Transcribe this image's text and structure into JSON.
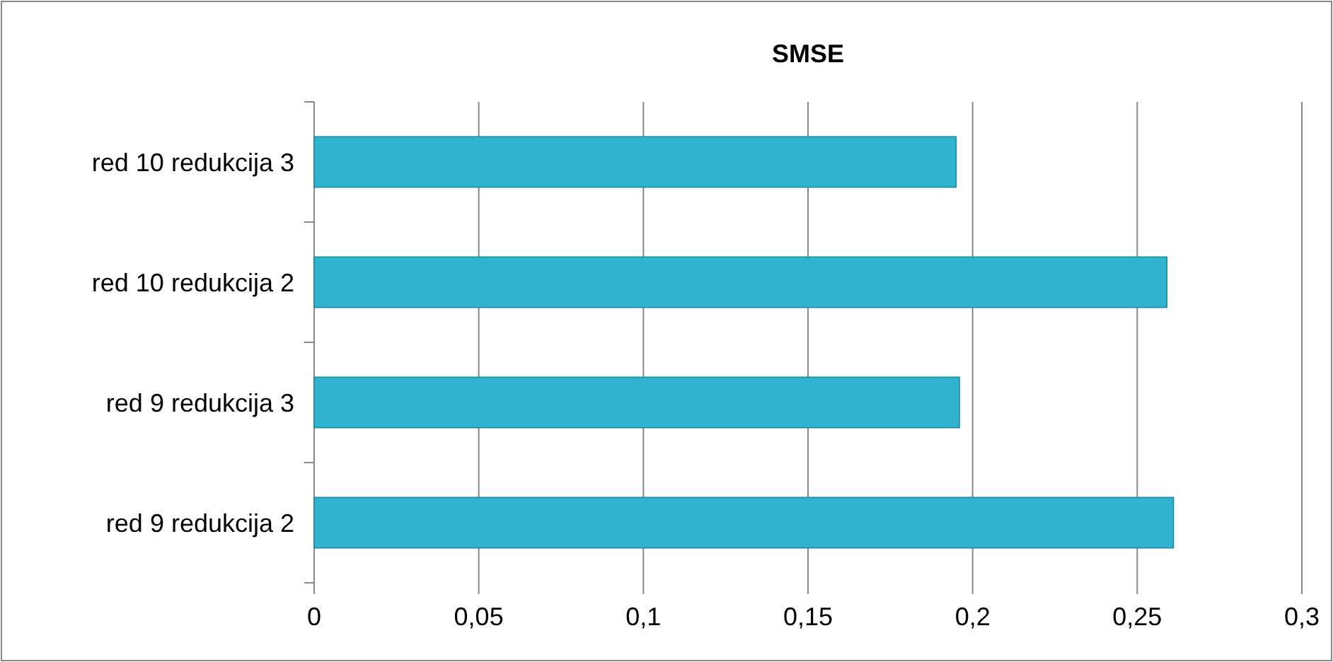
{
  "chart_data": {
    "type": "bar",
    "orientation": "horizontal",
    "title": "SMSE",
    "categories": [
      "red 10 redukcija 3",
      "red 10 redukcija 2",
      "red 9 redukcija 3",
      "red 9 redukcija 2"
    ],
    "values": [
      0.195,
      0.259,
      0.196,
      0.261
    ],
    "color": "#2fb3cf",
    "xlim": [
      0,
      0.3
    ],
    "xticks": [
      0,
      {
        "value": 0.05,
        "label": "0,05"
      },
      {
        "value": 0.1,
        "label": "0,1"
      },
      {
        "value": 0.15,
        "label": "0,15"
      },
      {
        "value": 0.2,
        "label": "0,2"
      },
      {
        "value": 0.25,
        "label": "0,25"
      },
      {
        "value": 0.3,
        "label": "0,3"
      }
    ],
    "grid": "x"
  }
}
